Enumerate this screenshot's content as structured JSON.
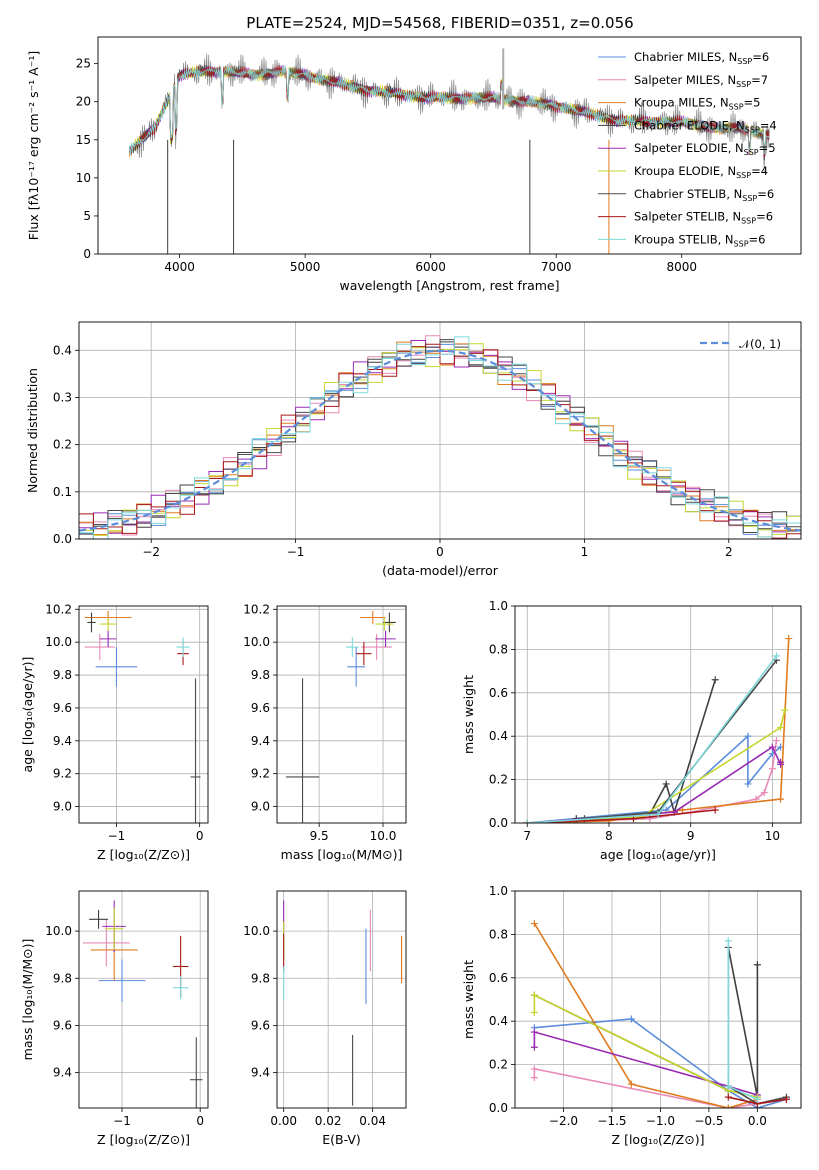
{
  "title": "PLATE=2524, MJD=54568, FIBERID=0351, z=0.056",
  "legend_models": [
    {
      "label": "Chabrier MILES, N",
      "nssp": "=6",
      "color": "#5b8ddb"
    },
    {
      "label": "Salpeter MILES, N",
      "nssp": "=7",
      "color": "#e88ab7"
    },
    {
      "label": "Kroupa MILES, N",
      "nssp": "=5",
      "color": "#e07b1f"
    },
    {
      "label": "Chabrier ELODIE, N",
      "nssp": "=4",
      "color": "#3f3f3f"
    },
    {
      "label": "Salpeter ELODIE, N",
      "nssp": "=5",
      "color": "#9a2bb3"
    },
    {
      "label": "Kroupa ELODIE, N",
      "nssp": "=4",
      "color": "#c6d62e"
    },
    {
      "label": "Chabrier STELIB, N",
      "nssp": "=6",
      "color": "#4a4a4a"
    },
    {
      "label": "Salpeter STELIB, N",
      "nssp": "=6",
      "color": "#a81a1a"
    },
    {
      "label": "Kroupa STELIB, N",
      "nssp": "=6",
      "color": "#7dd8dc"
    }
  ],
  "chart_data": [
    {
      "id": "spectrum",
      "type": "line",
      "xlabel": "wavelength [Angstrom, rest frame]",
      "ylabel": "Flux [fλ10⁻¹⁷ erg cm⁻² s⁻¹ A⁻¹]",
      "xlim": [
        3350,
        8950
      ],
      "ylim": [
        0,
        28.5
      ],
      "xticks": [
        4000,
        5000,
        6000,
        7000,
        8000
      ],
      "yticks": [
        0,
        5,
        10,
        15,
        20,
        25
      ],
      "data_color": "#8c8c8c",
      "envelope_x": [
        3600,
        3700,
        3800,
        3900,
        4000,
        4200,
        4400,
        4600,
        4800,
        5000,
        5500,
        6000,
        6500,
        7000,
        7500,
        8000,
        8300,
        8500,
        8700
      ],
      "envelope_y": [
        13.5,
        15,
        16.5,
        20,
        23.5,
        24,
        24,
        23.5,
        24,
        23.5,
        21.5,
        20.5,
        20.5,
        19.5,
        17.5,
        17.3,
        16.5,
        16.5,
        15.5
      ]
    },
    {
      "id": "residuals",
      "type": "line",
      "xlabel": "(data-model)/error",
      "ylabel": "Normed distribution",
      "xlim": [
        -2.5,
        2.5
      ],
      "ylim": [
        0,
        0.46
      ],
      "xticks": [
        -2,
        -1,
        0,
        1,
        2
      ],
      "yticks": [
        0.0,
        0.1,
        0.2,
        0.3,
        0.4
      ],
      "legend": "𝒩(0, 1)",
      "reference_color": "#5b8ddb"
    },
    {
      "id": "age-vs-Z",
      "type": "scatter",
      "xlabel": "Z [log₁₀(Z/Z⊙)]",
      "ylabel": "age  [log₁₀(age/yr)]",
      "xlim": [
        -1.45,
        0.1
      ],
      "ylim": [
        8.9,
        10.22
      ],
      "xticks": [
        -1,
        0
      ],
      "yticks": [
        9.0,
        9.2,
        9.4,
        9.6,
        9.8,
        10.0,
        10.2
      ],
      "points": [
        {
          "model": 0,
          "x": -1.0,
          "y": 9.85,
          "xerr": 0.25,
          "yerr": 0.12
        },
        {
          "model": 1,
          "x": -1.2,
          "y": 9.97,
          "xerr": 0.18,
          "yerr": 0.08
        },
        {
          "model": 2,
          "x": -1.1,
          "y": 10.15,
          "xerr": 0.28,
          "yerr": 0.04
        },
        {
          "model": 3,
          "x": -1.3,
          "y": 10.12,
          "xerr": 0.05,
          "yerr": 0.06
        },
        {
          "model": 4,
          "x": -1.1,
          "y": 10.02,
          "xerr": 0.1,
          "yerr": 0.05
        },
        {
          "model": 5,
          "x": -1.1,
          "y": 10.11,
          "xerr": 0.1,
          "yerr": 0.04
        },
        {
          "model": 6,
          "x": -0.05,
          "y": 9.18,
          "xerr": 0.06,
          "yerr": 0.6
        },
        {
          "model": 7,
          "x": -0.2,
          "y": 9.93,
          "xerr": 0.07,
          "yerr": 0.07
        },
        {
          "model": 8,
          "x": -0.2,
          "y": 9.97,
          "xerr": 0.08,
          "yerr": 0.06
        }
      ]
    },
    {
      "id": "age-vs-mass",
      "type": "scatter",
      "xlabel": "mass [log₁₀(M/M⊙)]",
      "ylabel": "",
      "xlim": [
        9.17,
        10.18
      ],
      "ylim": [
        8.9,
        10.22
      ],
      "xticks": [
        9.5,
        10.0
      ],
      "yticks": [
        9.0,
        9.2,
        9.4,
        9.6,
        9.8,
        10.0,
        10.2
      ],
      "points": [
        {
          "model": 0,
          "x": 9.79,
          "y": 9.85,
          "xerr": 0.07,
          "yerr": 0.12
        },
        {
          "model": 1,
          "x": 9.95,
          "y": 9.97,
          "xerr": 0.12,
          "yerr": 0.08
        },
        {
          "model": 2,
          "x": 9.92,
          "y": 10.15,
          "xerr": 0.1,
          "yerr": 0.04
        },
        {
          "model": 3,
          "x": 10.05,
          "y": 10.12,
          "xerr": 0.05,
          "yerr": 0.06
        },
        {
          "model": 4,
          "x": 10.02,
          "y": 10.02,
          "xerr": 0.08,
          "yerr": 0.05
        },
        {
          "model": 5,
          "x": 10.01,
          "y": 10.11,
          "xerr": 0.07,
          "yerr": 0.04
        },
        {
          "model": 6,
          "x": 9.37,
          "y": 9.18,
          "xerr": 0.13,
          "yerr": 0.6
        },
        {
          "model": 7,
          "x": 9.85,
          "y": 9.93,
          "xerr": 0.06,
          "yerr": 0.07
        },
        {
          "model": 8,
          "x": 9.76,
          "y": 9.97,
          "xerr": 0.05,
          "yerr": 0.06
        }
      ]
    },
    {
      "id": "weight-vs-age",
      "type": "line",
      "xlabel": "age  [log₁₀(age/yr)]",
      "ylabel": "mass weight",
      "xlim": [
        6.85,
        10.35
      ],
      "ylim": [
        0,
        1.0
      ],
      "xticks": [
        7,
        8,
        9,
        10
      ],
      "yticks": [
        0.0,
        0.2,
        0.4,
        0.6,
        0.8,
        1.0
      ],
      "series": [
        {
          "model": 0,
          "x": [
            7.0,
            8.7,
            9.7,
            9.7,
            10.0,
            10.1
          ],
          "y": [
            0.0,
            0.06,
            0.4,
            0.18,
            0.32,
            0.35
          ]
        },
        {
          "model": 1,
          "x": [
            7.0,
            8.5,
            9.0,
            9.8,
            9.9,
            10.0,
            10.05
          ],
          "y": [
            0.0,
            0.02,
            0.05,
            0.11,
            0.14,
            0.25,
            0.38
          ]
        },
        {
          "model": 2,
          "x": [
            7.0,
            8.0,
            8.9,
            10.1,
            10.2
          ],
          "y": [
            0.0,
            0.01,
            0.06,
            0.11,
            0.85
          ]
        },
        {
          "model": 3,
          "x": [
            7.6,
            8.5,
            8.7,
            8.8,
            9.3
          ],
          "y": [
            0.02,
            0.04,
            0.18,
            0.05,
            0.66
          ]
        },
        {
          "model": 4,
          "x": [
            7.0,
            8.8,
            10.0,
            10.1,
            10.1
          ],
          "y": [
            0.0,
            0.05,
            0.35,
            0.27,
            0.28
          ]
        },
        {
          "model": 5,
          "x": [
            7.0,
            8.4,
            10.1,
            10.15
          ],
          "y": [
            0.0,
            0.03,
            0.44,
            0.52
          ]
        },
        {
          "model": 6,
          "x": [
            7.7,
            8.6,
            10.05
          ],
          "y": [
            0.02,
            0.05,
            0.75
          ]
        },
        {
          "model": 7,
          "x": [
            7.0,
            8.3,
            9.3
          ],
          "y": [
            0.0,
            0.02,
            0.06
          ]
        },
        {
          "model": 8,
          "x": [
            7.0,
            8.6,
            10.05
          ],
          "y": [
            0.0,
            0.04,
            0.77
          ]
        }
      ]
    },
    {
      "id": "mass-vs-Z",
      "type": "scatter",
      "xlabel": "Z [log₁₀(Z/Z⊙)]",
      "ylabel": "mass [log₁₀(M/M⊙)]",
      "xlim": [
        -1.55,
        0.1
      ],
      "ylim": [
        9.25,
        10.17
      ],
      "xticks": [
        -1,
        0
      ],
      "yticks": [
        9.4,
        9.6,
        9.8,
        10.0
      ],
      "points": [
        {
          "model": 0,
          "x": -1.0,
          "y": 9.79,
          "xerr": 0.3,
          "yerr": 0.09
        },
        {
          "model": 1,
          "x": -1.2,
          "y": 9.95,
          "xerr": 0.3,
          "yerr": 0.1
        },
        {
          "model": 2,
          "x": -1.1,
          "y": 9.92,
          "xerr": 0.3,
          "yerr": 0.13
        },
        {
          "model": 3,
          "x": -1.3,
          "y": 10.05,
          "xerr": 0.12,
          "yerr": 0.04
        },
        {
          "model": 4,
          "x": -1.1,
          "y": 10.02,
          "xerr": 0.15,
          "yerr": 0.11
        },
        {
          "model": 5,
          "x": -1.1,
          "y": 10.01,
          "xerr": 0.12,
          "yerr": 0.09
        },
        {
          "model": 6,
          "x": -0.05,
          "y": 9.37,
          "xerr": 0.08,
          "yerr": 0.18
        },
        {
          "model": 7,
          "x": -0.25,
          "y": 9.85,
          "xerr": 0.1,
          "yerr": 0.13
        },
        {
          "model": 8,
          "x": -0.25,
          "y": 9.76,
          "xerr": 0.1,
          "yerr": 0.05
        }
      ]
    },
    {
      "id": "mass-vs-EBV",
      "type": "scatter",
      "xlabel": "E(B-V)",
      "ylabel": "",
      "xlim": [
        -0.003,
        0.055
      ],
      "ylim": [
        9.25,
        10.17
      ],
      "xticks": [
        0.0,
        0.02,
        0.04
      ],
      "yticks": [
        9.4,
        9.6,
        9.8,
        10.0
      ],
      "points": [
        {
          "model": 0,
          "x": 0.037,
          "y": 9.85,
          "xerr": 0.0,
          "yerr": 0.16
        },
        {
          "model": 1,
          "x": 0.039,
          "y": 9.96,
          "xerr": 0.0,
          "yerr": 0.13
        },
        {
          "model": 2,
          "x": 0.053,
          "y": 9.88,
          "xerr": 0.0,
          "yerr": 0.1
        },
        {
          "model": 4,
          "x": 0.0,
          "y": 10.06,
          "xerr": 0.0,
          "yerr": 0.07
        },
        {
          "model": 5,
          "x": 0.0,
          "y": 9.96,
          "xerr": 0.0,
          "yerr": 0.08
        },
        {
          "model": 6,
          "x": 0.031,
          "y": 9.41,
          "xerr": 0.0,
          "yerr": 0.15
        },
        {
          "model": 7,
          "x": 0.0,
          "y": 9.91,
          "xerr": 0.0,
          "yerr": 0.08
        },
        {
          "model": 8,
          "x": 0.0,
          "y": 9.78,
          "xerr": 0.0,
          "yerr": 0.07
        }
      ]
    },
    {
      "id": "weight-vs-Z",
      "type": "line",
      "xlabel": "Z [log₁₀(Z/Z⊙)]",
      "ylabel": "mass weight",
      "xlim": [
        -2.5,
        0.45
      ],
      "ylim": [
        0,
        1.0
      ],
      "xticks": [
        -2.0,
        -1.5,
        -1.0,
        -0.5,
        0.0
      ],
      "yticks": [
        0.0,
        0.2,
        0.4,
        0.6,
        0.8,
        1.0
      ],
      "series": [
        {
          "model": 0,
          "x": [
            -2.3,
            -1.3,
            -0.3,
            0.0,
            0.3
          ],
          "y": [
            0.37,
            0.41,
            0.08,
            0.0,
            0.04
          ]
        },
        {
          "model": 1,
          "x": [
            -2.3,
            -2.3,
            -0.3,
            0.0,
            0.3
          ],
          "y": [
            0.14,
            0.18,
            0.0,
            0.02,
            0.04
          ]
        },
        {
          "model": 2,
          "x": [
            -2.3,
            -1.3,
            -0.3,
            0.0
          ],
          "y": [
            0.85,
            0.11,
            0.0,
            0.04
          ]
        },
        {
          "model": 3,
          "x": [
            -2.3,
            -0.3,
            -0.3,
            0.0,
            0.0
          ],
          "y": [
            0.52,
            0.08,
            0.74,
            0.05,
            0.66
          ]
        },
        {
          "model": 4,
          "x": [
            -2.3,
            -2.3,
            -0.3,
            0.0
          ],
          "y": [
            0.28,
            0.35,
            0.1,
            0.06
          ]
        },
        {
          "model": 5,
          "x": [
            -2.3,
            -2.3,
            -0.3,
            0.0
          ],
          "y": [
            0.44,
            0.52,
            0.08,
            0.05
          ]
        },
        {
          "model": 6,
          "x": [
            -0.3,
            0.0,
            0.3
          ],
          "y": [
            0.1,
            0.02,
            0.05
          ]
        },
        {
          "model": 7,
          "x": [
            -0.3,
            0.0,
            0.3
          ],
          "y": [
            0.05,
            0.02,
            0.04
          ]
        },
        {
          "model": 8,
          "x": [
            -0.3,
            -0.3,
            0.0
          ],
          "y": [
            0.77,
            0.1,
            0.04
          ]
        }
      ]
    }
  ]
}
